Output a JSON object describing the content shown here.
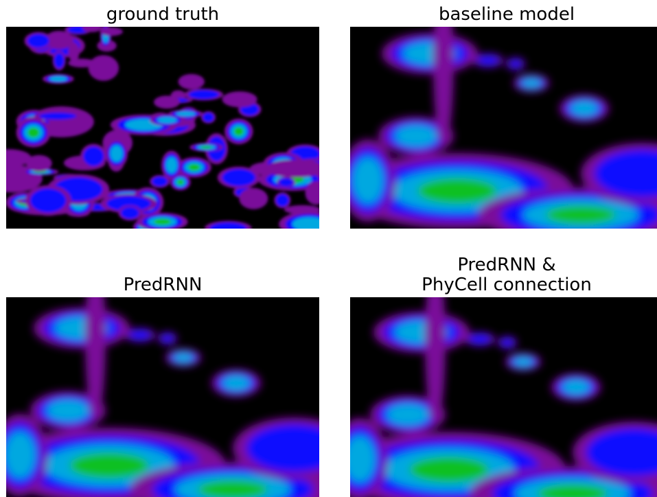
{
  "panels": [
    {
      "title": [
        "ground truth"
      ]
    },
    {
      "title": [
        "baseline model"
      ]
    },
    {
      "title": [
        "PredRNN"
      ]
    },
    {
      "title": [
        "PredRNN &",
        "PhyCell connection"
      ]
    }
  ]
}
